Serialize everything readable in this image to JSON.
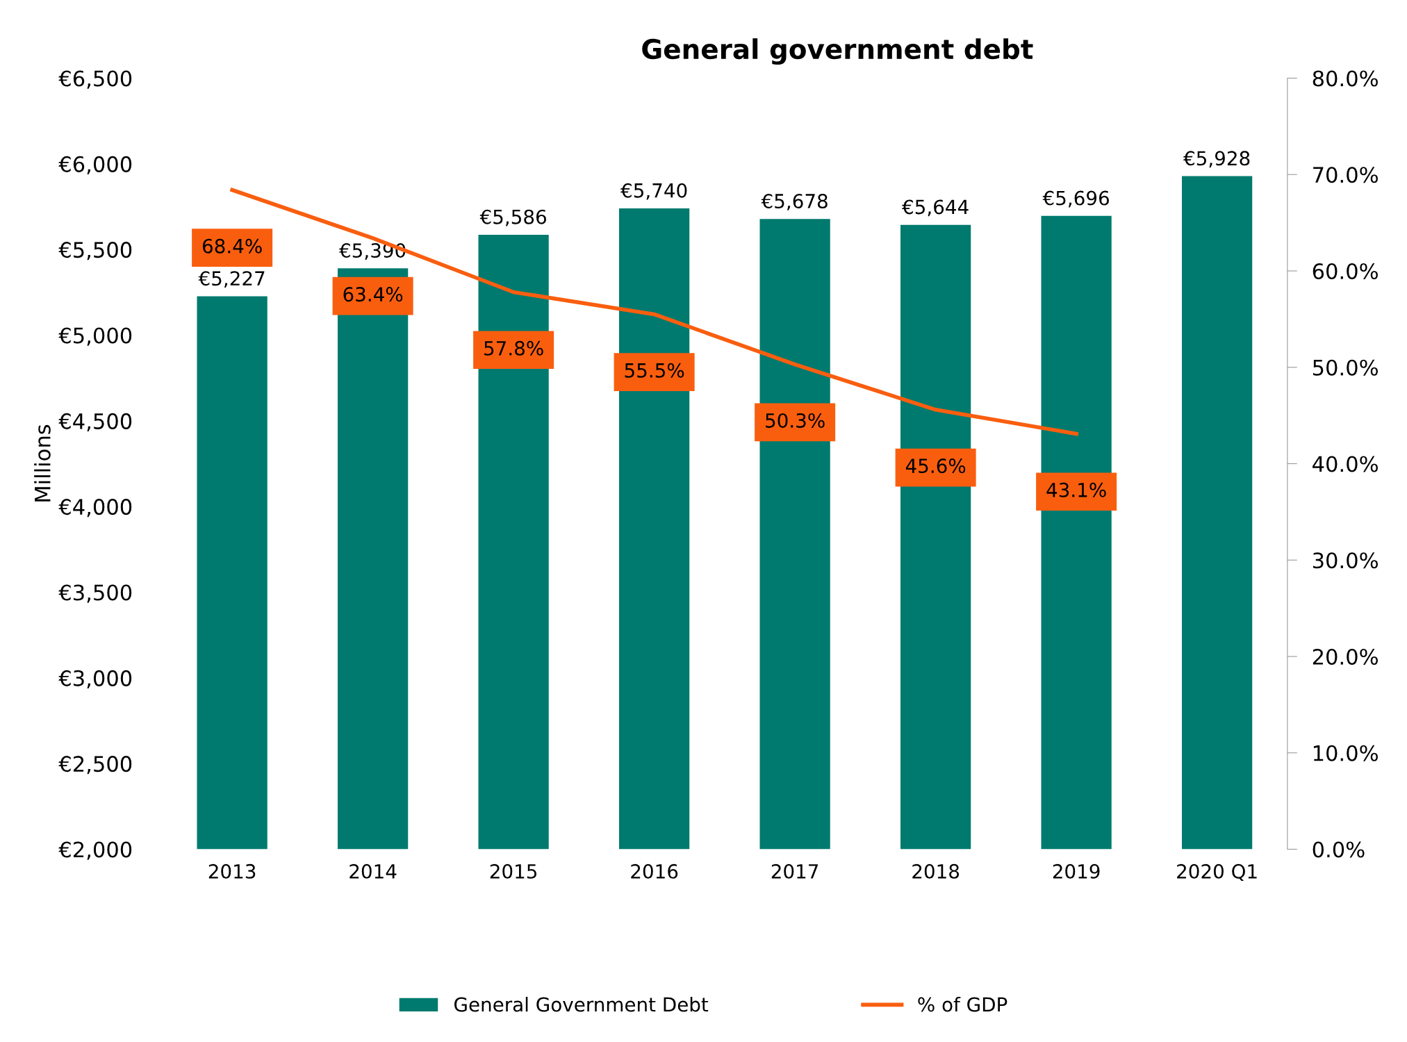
{
  "chart_data": {
    "type": "bar",
    "title": "General government debt",
    "ylabel": "Millions",
    "categories": [
      "2013",
      "2014",
      "2015",
      "2016",
      "2017",
      "2018",
      "2019",
      "2020 Q1"
    ],
    "series": [
      {
        "name": "General Government Debt",
        "color": "#007a6e",
        "values": [
          5227,
          5390,
          5586,
          5740,
          5678,
          5644,
          5696,
          5928
        ],
        "value_labels": [
          "€5,227",
          "€5,390",
          "€5,586",
          "€5,740",
          "€5,678",
          "€5,644",
          "€5,696",
          "€5,928"
        ]
      },
      {
        "name": "% of GDP",
        "type": "line",
        "axis": "y2",
        "color": "#f95e0f",
        "values": [
          68.4,
          63.4,
          57.8,
          55.5,
          50.3,
          45.6,
          43.1,
          null
        ],
        "value_labels": [
          "68.4%",
          "63.4%",
          "57.8%",
          "55.5%",
          "50.3%",
          "45.6%",
          "43.1%",
          null
        ]
      }
    ],
    "ylim": [
      2000,
      6500
    ],
    "yticks": [
      {
        "value": 2000,
        "label": "€2,000"
      },
      {
        "value": 2500,
        "label": "€2,500"
      },
      {
        "value": 3000,
        "label": "€3,000"
      },
      {
        "value": 3500,
        "label": "€3,500"
      },
      {
        "value": 4000,
        "label": "€4,000"
      },
      {
        "value": 4500,
        "label": "€4,500"
      },
      {
        "value": 5000,
        "label": "€5,000"
      },
      {
        "value": 5500,
        "label": "€5,500"
      },
      {
        "value": 6000,
        "label": "€6,000"
      },
      {
        "value": 6500,
        "label": "€6,500"
      }
    ],
    "y2lim": [
      0,
      80
    ],
    "y2ticks": [
      {
        "value": 0,
        "label": "0.0%"
      },
      {
        "value": 10,
        "label": "10.0%"
      },
      {
        "value": 20,
        "label": "20.0%"
      },
      {
        "value": 30,
        "label": "30.0%"
      },
      {
        "value": 40,
        "label": "40.0%"
      },
      {
        "value": 50,
        "label": "50.0%"
      },
      {
        "value": 60,
        "label": "60.0%"
      },
      {
        "value": 70,
        "label": "70.0%"
      },
      {
        "value": 80,
        "label": "80.0%"
      }
    ],
    "legend": "bottom",
    "grid": false,
    "marker": "none",
    "line_style": "solid"
  }
}
